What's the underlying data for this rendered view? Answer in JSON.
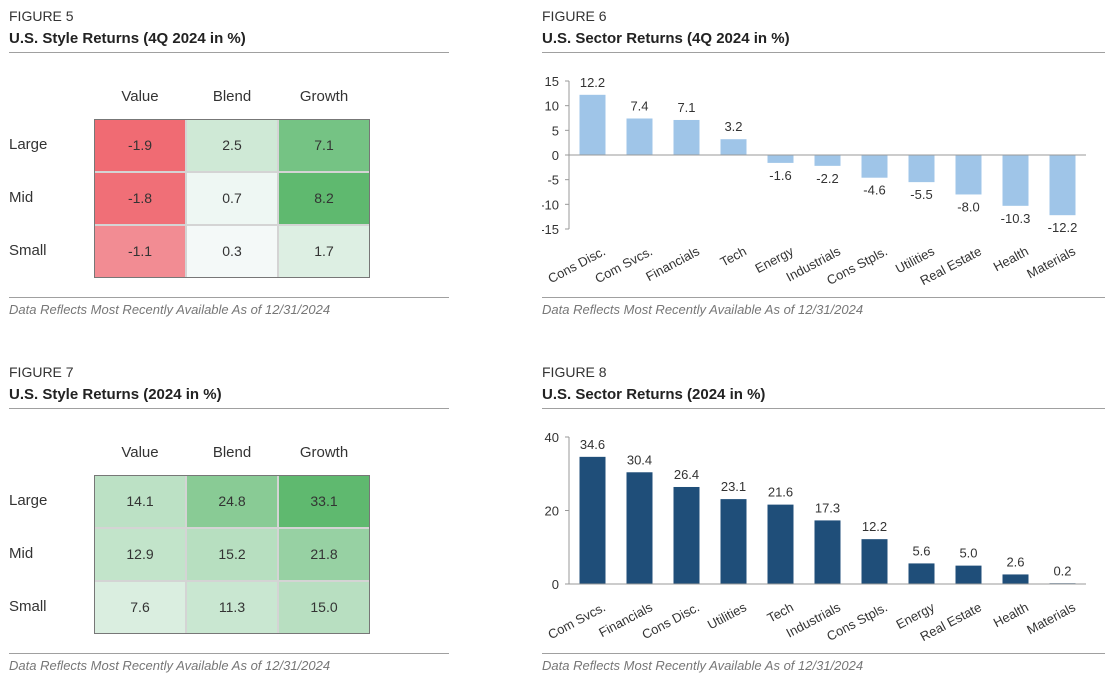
{
  "colors": {
    "neg_strong": "#f06b73",
    "neg_light": "#f7aaae",
    "pos_strong": "#5fb96f",
    "sector_4q_bar": "#9fc5e8",
    "sector_2024_bar": "#1f4e79"
  },
  "fig5": {
    "label": "FIGURE 5",
    "title": "U.S. Style Returns (4Q 2024 in %)",
    "footnote": "Data Reflects Most Recently Available As of 12/31/2024",
    "chart_data": {
      "type": "heatmap",
      "columns": [
        "Value",
        "Blend",
        "Growth"
      ],
      "rows": [
        "Large",
        "Mid",
        "Small"
      ],
      "values": [
        [
          -1.9,
          2.5,
          7.1
        ],
        [
          -1.8,
          0.7,
          8.2
        ],
        [
          -1.1,
          0.3,
          1.7
        ]
      ],
      "labels": [
        [
          "-1.9",
          "2.5",
          "7.1"
        ],
        [
          "-1.8",
          "0.7",
          "8.2"
        ],
        [
          "-1.1",
          "0.3",
          "1.7"
        ]
      ]
    }
  },
  "fig6": {
    "label": "FIGURE 6",
    "title": "U.S. Sector Returns (4Q 2024 in %)",
    "footnote": "Data Reflects Most Recently Available As of 12/31/2024",
    "chart_data": {
      "type": "bar",
      "categories": [
        "Cons Disc.",
        "Com Svcs.",
        "Financials",
        "Tech",
        "Energy",
        "Industrials",
        "Cons Stpls.",
        "Utilities",
        "Real Estate",
        "Health",
        "Materials"
      ],
      "values": [
        12.2,
        7.4,
        7.1,
        3.2,
        -1.6,
        -2.2,
        -4.6,
        -5.5,
        -8.0,
        -10.3,
        -12.2
      ],
      "value_labels": [
        "12.2",
        "7.4",
        "7.1",
        "3.2",
        "-1.6",
        "-2.2",
        "-4.6",
        "-5.5",
        "-8.0",
        "-10.3",
        "-12.2"
      ],
      "ylim": [
        -15,
        15
      ],
      "yticks": [
        -15,
        -10,
        -5,
        0,
        5,
        10,
        15
      ],
      "ytick_labels": [
        "-15",
        "-10",
        "-5",
        "0",
        "5",
        "10",
        "15"
      ]
    }
  },
  "fig7": {
    "label": "FIGURE 7",
    "title": "U.S. Style Returns (2024 in %)",
    "footnote": "Data Reflects Most Recently Available As of 12/31/2024",
    "chart_data": {
      "type": "heatmap",
      "columns": [
        "Value",
        "Blend",
        "Growth"
      ],
      "rows": [
        "Large",
        "Mid",
        "Small"
      ],
      "values": [
        [
          14.1,
          24.8,
          33.1
        ],
        [
          12.9,
          15.2,
          21.8
        ],
        [
          7.6,
          11.3,
          15.0
        ]
      ],
      "labels": [
        [
          "14.1",
          "24.8",
          "33.1"
        ],
        [
          "12.9",
          "15.2",
          "21.8"
        ],
        [
          "7.6",
          "11.3",
          "15.0"
        ]
      ]
    }
  },
  "fig8": {
    "label": "FIGURE 8",
    "title": "U.S. Sector Returns (2024 in %)",
    "footnote": "Data Reflects Most Recently Available As of 12/31/2024",
    "chart_data": {
      "type": "bar",
      "categories": [
        "Com Svcs.",
        "Financials",
        "Cons Disc.",
        "Utilities",
        "Tech",
        "Industrials",
        "Cons Stpls.",
        "Energy",
        "Real Estate",
        "Health",
        "Materials"
      ],
      "values": [
        34.6,
        30.4,
        26.4,
        23.1,
        21.6,
        17.3,
        12.2,
        5.6,
        5.0,
        2.6,
        0.2
      ],
      "value_labels": [
        "34.6",
        "30.4",
        "26.4",
        "23.1",
        "21.6",
        "17.3",
        "12.2",
        "5.6",
        "5.0",
        "2.6",
        "0.2"
      ],
      "ylim": [
        0,
        40
      ],
      "yticks": [
        0,
        20,
        40
      ],
      "ytick_labels": [
        "0",
        "20",
        "40"
      ]
    }
  }
}
